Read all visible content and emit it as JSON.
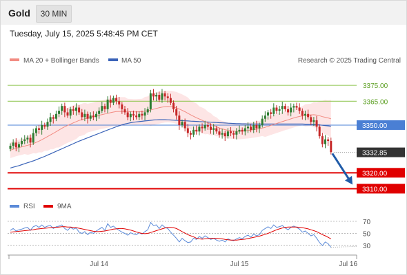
{
  "header": {
    "instrument": "Gold",
    "timeframe": "30 MIN"
  },
  "timestamp": "Tuesday, July 15, 2025 5:48:45 PM CET",
  "legend": {
    "ma20_label": "MA 20 + Bollinger Bands",
    "ma50_label": "MA 50",
    "credit": "Research © 2025 Trading Central",
    "rsi_label": "RSI",
    "rsi_ma_label": "9MA"
  },
  "colors": {
    "ma20": "#f28b82",
    "band_fill": "#fde0e0",
    "ma50": "#3a63b8",
    "candle_up": "#2e7d32",
    "candle_down": "#c62828",
    "level_green": "#8bc34a",
    "level_blue": "#4a7fd4",
    "level_red": "#e00000",
    "current_box": "#333333",
    "arrow": "#1f5ba8",
    "rsi": "#5b8ad8",
    "rsi_ma": "#e00000"
  },
  "chart_data": {
    "type": "candlestick",
    "instrument": "Gold",
    "timeframe": "30 MIN",
    "y_range": [
      3305,
      3385
    ],
    "x_labels": [
      "Jul 14",
      "Jul 15",
      "Jul 16"
    ],
    "x_label_index": [
      31,
      80,
      118
    ],
    "levels": [
      {
        "value": 3375.0,
        "label": "3375.00",
        "kind": "resistance",
        "color": "#8bc34a"
      },
      {
        "value": 3365.0,
        "label": "3365.00",
        "kind": "resistance",
        "color": "#8bc34a"
      },
      {
        "value": 3350.0,
        "label": "3350.00",
        "kind": "pivot",
        "color": "#4a7fd4"
      },
      {
        "value": 3320.0,
        "label": "3320.00",
        "kind": "support",
        "color": "#e00000"
      },
      {
        "value": 3310.0,
        "label": "3310.00",
        "kind": "support",
        "color": "#e00000"
      }
    ],
    "current_price": {
      "value": 3332.85,
      "label": "3332.85"
    },
    "projection": {
      "from": 3333,
      "to": 3310
    },
    "close": [
      3337,
      3339,
      3336,
      3338,
      3340,
      3341,
      3342,
      3339,
      3345,
      3348,
      3347,
      3350,
      3349,
      3352,
      3355,
      3354,
      3357,
      3359,
      3362,
      3358,
      3356,
      3360,
      3359,
      3361,
      3358,
      3355,
      3357,
      3354,
      3356,
      3355,
      3357,
      3359,
      3362,
      3360,
      3366,
      3364,
      3367,
      3365,
      3363,
      3360,
      3358,
      3355,
      3357,
      3356,
      3355,
      3357,
      3356,
      3358,
      3360,
      3370,
      3368,
      3369,
      3366,
      3370,
      3368,
      3367,
      3364,
      3360,
      3356,
      3350,
      3352,
      3348,
      3345,
      3344,
      3347,
      3346,
      3349,
      3348,
      3350,
      3349,
      3347,
      3348,
      3346,
      3344,
      3345,
      3343,
      3346,
      3345,
      3344,
      3346,
      3347,
      3346,
      3348,
      3349,
      3347,
      3350,
      3348,
      3350,
      3354,
      3356,
      3358,
      3357,
      3361,
      3359,
      3360,
      3362,
      3360,
      3358,
      3361,
      3362,
      3361,
      3359,
      3356,
      3357,
      3355,
      3352,
      3353,
      3349,
      3343,
      3338,
      3341,
      3340,
      3333
    ],
    "ma20": [
      3334.2,
      3334.8,
      3335.4,
      3335.9,
      3336.3,
      3336.8,
      3337.3,
      3337.7,
      3338.3,
      3339.1,
      3339.9,
      3340.8,
      3341.8,
      3342.8,
      3343.8,
      3344.8,
      3345.8,
      3346.9,
      3348.0,
      3349.0,
      3349.8,
      3350.6,
      3351.4,
      3352.2,
      3352.9,
      3353.4,
      3354.0,
      3354.4,
      3354.8,
      3355.3,
      3355.8,
      3356.2,
      3356.6,
      3357.0,
      3357.4,
      3357.8,
      3358.2,
      3358.5,
      3358.6,
      3358.6,
      3358.6,
      3358.5,
      3358.4,
      3358.3,
      3358.3,
      3358.4,
      3358.5,
      3358.7,
      3359.0,
      3359.5,
      3360.0,
      3360.5,
      3360.9,
      3361.3,
      3361.6,
      3361.7,
      3361.6,
      3361.3,
      3360.8,
      3360.1,
      3359.3,
      3358.4,
      3357.4,
      3356.4,
      3355.5,
      3354.6,
      3353.8,
      3353.0,
      3352.2,
      3351.4,
      3350.5,
      3349.7,
      3348.9,
      3348.2,
      3347.6,
      3347.1,
      3346.7,
      3346.4,
      3346.2,
      3346.1,
      3346.1,
      3346.2,
      3346.4,
      3346.6,
      3346.8,
      3347.1,
      3347.4,
      3347.7,
      3348.1,
      3348.6,
      3349.2,
      3349.8,
      3350.4,
      3351.0,
      3351.6,
      3352.2,
      3352.8,
      3353.3,
      3353.9,
      3354.5,
      3355.0,
      3355.4,
      3355.8,
      3356.1,
      3356.3,
      3356.4,
      3356.5,
      3356.3,
      3355.9,
      3355.3,
      3354.9,
      3354.5,
      3353.9
    ],
    "ma50": [
      3323.0,
      3323.5,
      3324.0,
      3324.5,
      3325.1,
      3325.7,
      3326.3,
      3326.9,
      3327.5,
      3328.2,
      3328.9,
      3329.6,
      3330.3,
      3331.1,
      3331.9,
      3332.7,
      3333.5,
      3334.3,
      3335.1,
      3335.9,
      3336.7,
      3337.5,
      3338.3,
      3339.1,
      3339.9,
      3340.6,
      3341.3,
      3342.0,
      3342.7,
      3343.4,
      3344.1,
      3344.8,
      3345.5,
      3346.2,
      3346.9,
      3347.6,
      3348.3,
      3349.0,
      3349.6,
      3350.2,
      3350.7,
      3351.1,
      3351.5,
      3351.8,
      3352.0,
      3352.2,
      3352.4,
      3352.6,
      3352.8,
      3353.0,
      3353.2,
      3353.3,
      3353.4,
      3353.4,
      3353.4,
      3353.3,
      3353.2,
      3353.1,
      3353.0,
      3352.9,
      3352.8,
      3352.7,
      3352.6,
      3352.5,
      3352.4,
      3352.3,
      3352.2,
      3352.1,
      3352.0,
      3351.9,
      3351.8,
      3351.7,
      3351.6,
      3351.5,
      3351.4,
      3351.3,
      3351.2,
      3351.1,
      3351.0,
      3350.9,
      3350.9,
      3350.8,
      3350.8,
      3350.7,
      3350.7,
      3350.7,
      3350.7,
      3350.7,
      3350.7,
      3350.7,
      3350.7,
      3350.7,
      3350.7,
      3350.7,
      3350.7,
      3350.7,
      3350.7,
      3350.7,
      3350.7,
      3350.7,
      3350.7,
      3350.7,
      3350.7,
      3350.6,
      3350.6,
      3350.5,
      3350.4,
      3350.3,
      3350.1,
      3349.9,
      3349.7,
      3349.5,
      3349.3
    ],
    "band_width": [
      5,
      5,
      5,
      5,
      5,
      5,
      6,
      6,
      6,
      7,
      7,
      8,
      8,
      9,
      9,
      10,
      10,
      11,
      11,
      11,
      11,
      11,
      11,
      11,
      10,
      10,
      10,
      9,
      9,
      9,
      9,
      9,
      9,
      9,
      9,
      9,
      9,
      9,
      9,
      9,
      9,
      8,
      8,
      8,
      8,
      8,
      8,
      9,
      9,
      10,
      10,
      10,
      10,
      10,
      10,
      10,
      10,
      10,
      10,
      10,
      10,
      10,
      10,
      9,
      9,
      9,
      8,
      8,
      8,
      7,
      7,
      6,
      6,
      5,
      5,
      5,
      5,
      5,
      5,
      5,
      5,
      5,
      5,
      5,
      5,
      5,
      5,
      5,
      5,
      6,
      6,
      6,
      6,
      6,
      6,
      6,
      6,
      6,
      6,
      6,
      6,
      6,
      6,
      7,
      7,
      7,
      8,
      8,
      9,
      10,
      11,
      11,
      12
    ],
    "rsi": {
      "ticks": [
        70,
        50,
        30
      ],
      "range": [
        20,
        80
      ],
      "values": [
        55,
        58,
        54,
        56,
        57,
        59,
        60,
        55,
        61,
        63,
        60,
        64,
        60,
        62,
        63,
        58,
        61,
        62,
        64,
        58,
        55,
        60,
        57,
        59,
        52,
        50,
        53,
        48,
        52,
        50,
        54,
        57,
        60,
        55,
        66,
        60,
        62,
        58,
        55,
        52,
        50,
        47,
        51,
        49,
        48,
        51,
        49,
        53,
        56,
        68,
        63,
        64,
        58,
        64,
        60,
        58,
        52,
        47,
        42,
        36,
        42,
        38,
        35,
        36,
        42,
        40,
        45,
        42,
        46,
        43,
        40,
        42,
        39,
        37,
        39,
        36,
        41,
        39,
        38,
        41,
        43,
        41,
        45,
        47,
        44,
        49,
        46,
        48,
        55,
        58,
        61,
        58,
        64,
        60,
        61,
        63,
        59,
        56,
        60,
        62,
        60,
        57,
        52,
        54,
        50,
        46,
        48,
        42,
        35,
        30,
        36,
        33,
        27
      ],
      "ma9": [
        52,
        52.5,
        53,
        53.5,
        54,
        54.5,
        55,
        55.5,
        56,
        57,
        57.5,
        58,
        58.5,
        59,
        59.5,
        60,
        60,
        60.5,
        61,
        61,
        60.5,
        60.5,
        60,
        59.5,
        58.5,
        57.5,
        56.5,
        55.5,
        54.5,
        53.5,
        53,
        53,
        53.5,
        54,
        55,
        56,
        57,
        57.5,
        58,
        58,
        57.5,
        56.5,
        55.5,
        54,
        52.5,
        51,
        50,
        49.5,
        50,
        51.5,
        53,
        54.5,
        56,
        57.5,
        59,
        60,
        60,
        59.5,
        58,
        55.5,
        53,
        50.5,
        48,
        46,
        44.5,
        42,
        41,
        40.5,
        41,
        41.5,
        42,
        42,
        42,
        41.5,
        41,
        40,
        39.5,
        39,
        39,
        39,
        39.5,
        40,
        40.5,
        41.5,
        42.5,
        43.5,
        44.5,
        45.5,
        47,
        48.5,
        50,
        52,
        54,
        56,
        57.5,
        59,
        60,
        60.5,
        60.5,
        60.5,
        60.5,
        60,
        59.5,
        58.5,
        57.5,
        56,
        54.5,
        53,
        50.5,
        48,
        46,
        43.5,
        41
      ]
    }
  }
}
